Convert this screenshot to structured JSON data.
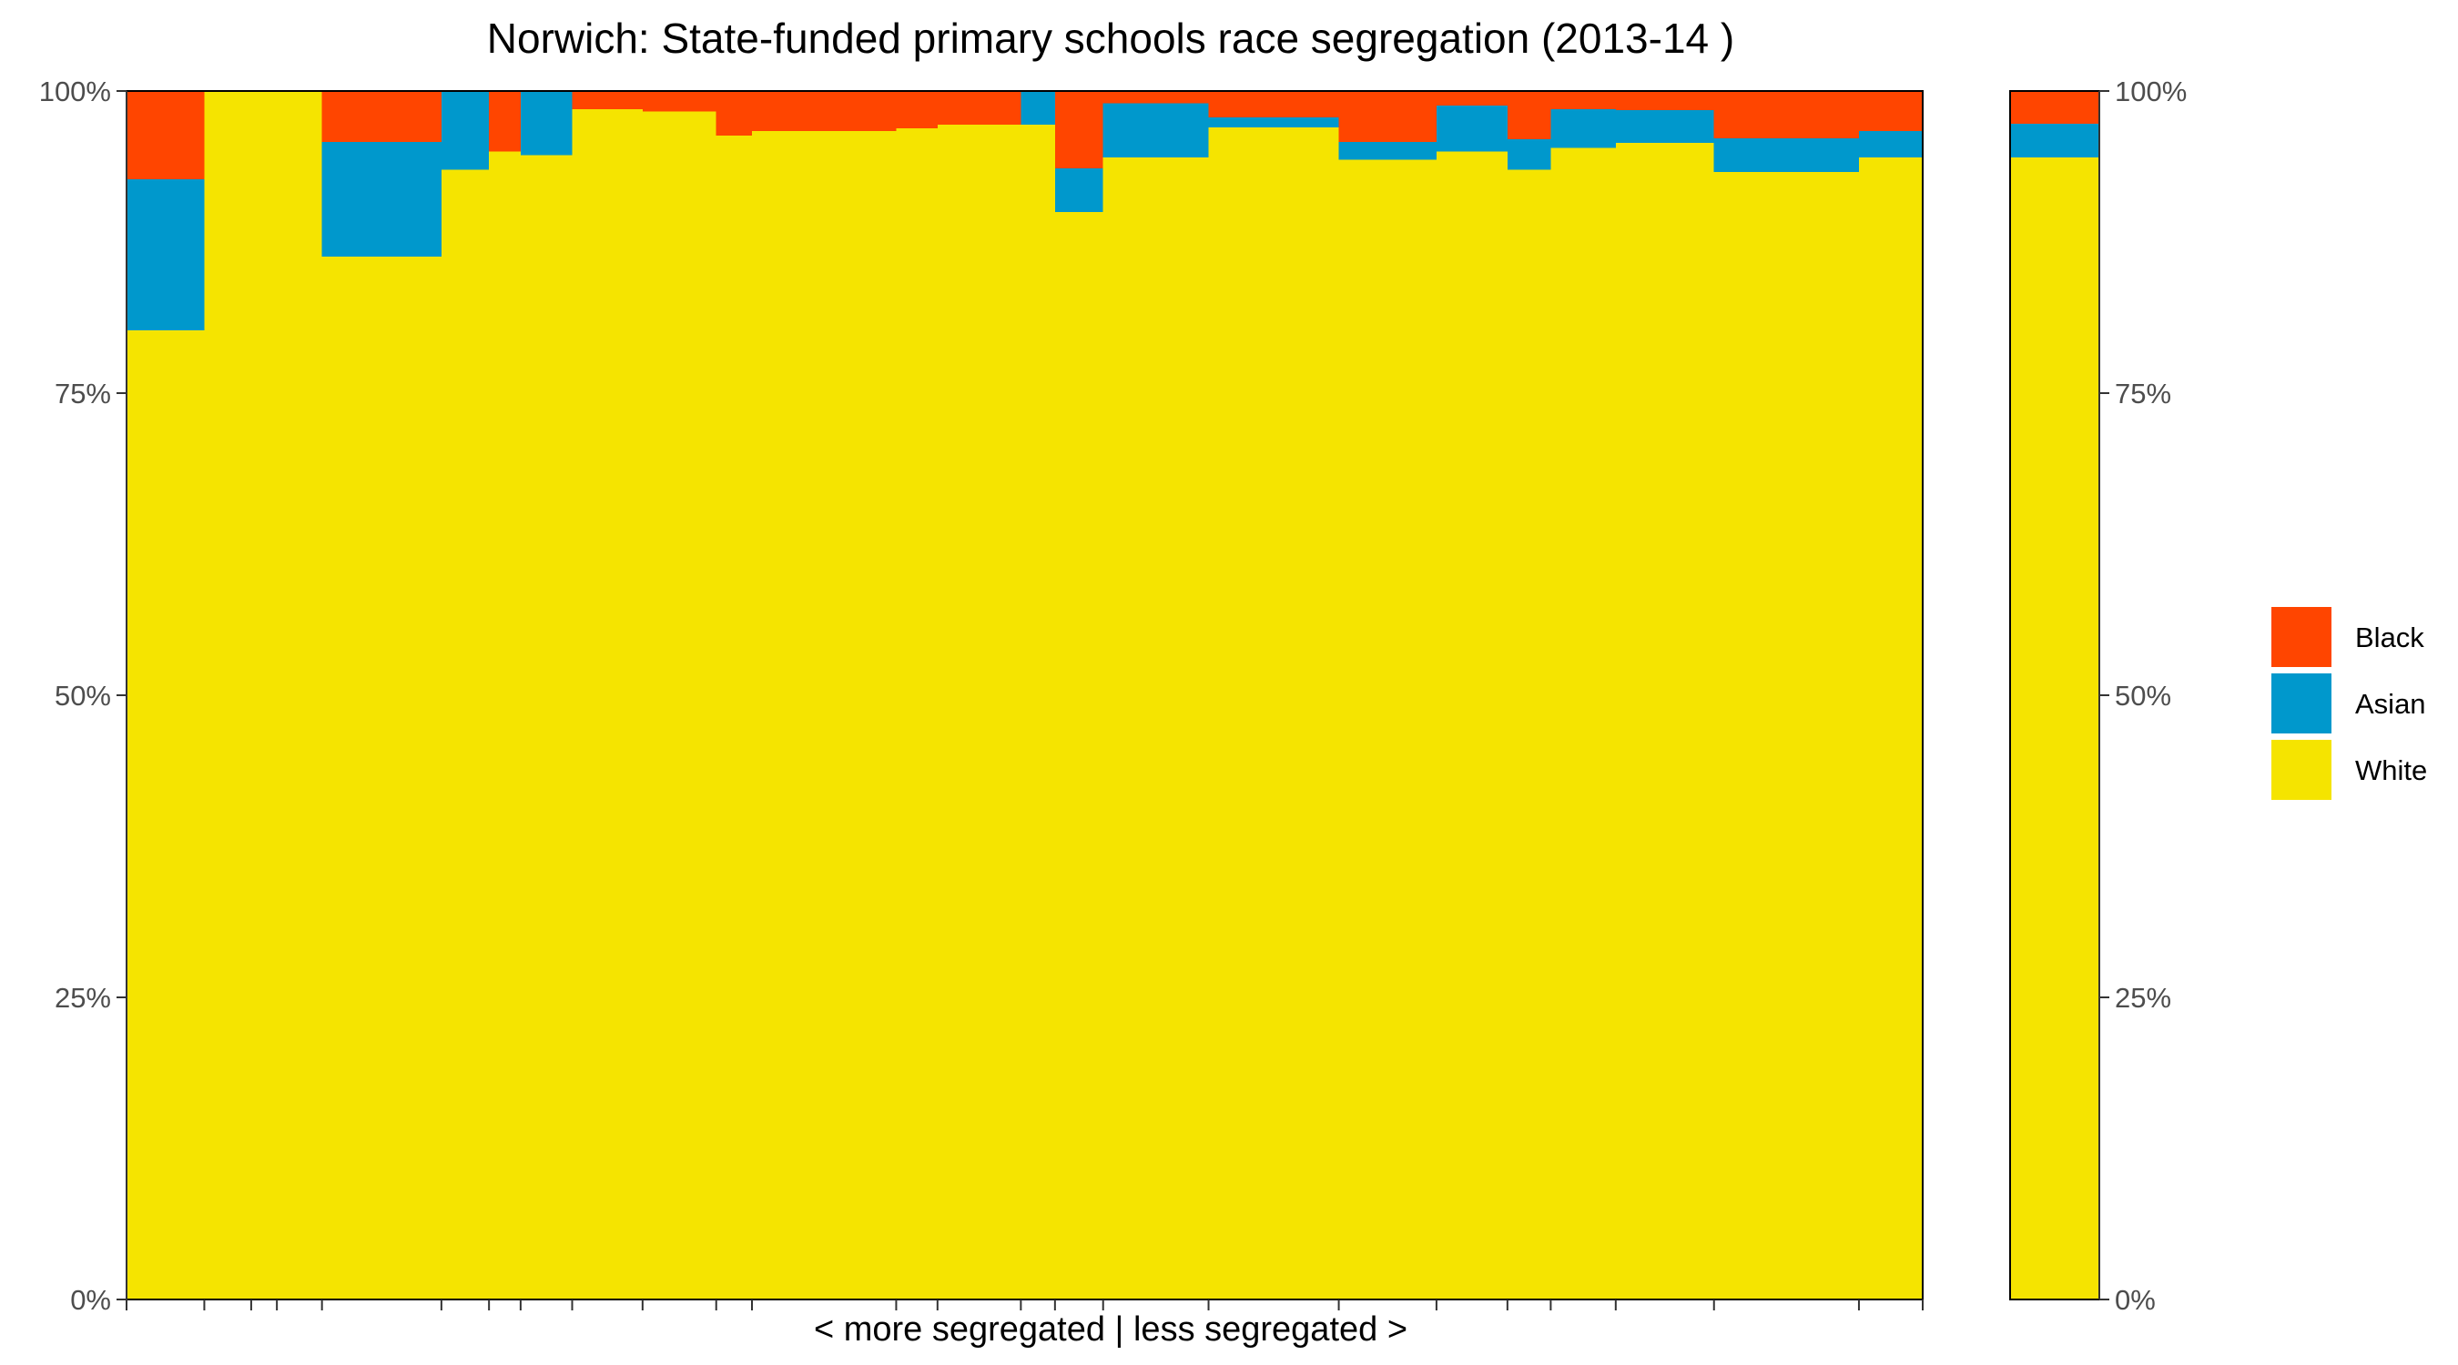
{
  "chart_data": {
    "type": "bar",
    "variant": "stacked-100-percent, variable-width (mosaic)",
    "title": "Norwich: State-funded primary schools race segregation (2013-14 )",
    "xlabel": "< more segregated | less segregated >",
    "ylabel": "",
    "ylim": [
      0,
      1
    ],
    "y_ticks": [
      "0%",
      "25%",
      "50%",
      "75%",
      "100%"
    ],
    "y_axis_sides": "left and right",
    "grid": false,
    "legend_position": "right",
    "stack_order_bottom_to_top": [
      "White",
      "Asian",
      "Black"
    ],
    "series_colors": {
      "Black": "#FF4500",
      "Asian": "#0098CC",
      "White": "#F5E400"
    },
    "legend": [
      {
        "name": "Black",
        "color": "#FF4500"
      },
      {
        "name": "Asian",
        "color": "#0098CC"
      },
      {
        "name": "White",
        "color": "#F5E400"
      }
    ],
    "schools": [
      {
        "x_start": 0.0,
        "x_end": 0.0433,
        "white": 0.802,
        "asian": 0.125,
        "black": 0.073
      },
      {
        "x_start": 0.0433,
        "x_end": 0.0694,
        "white": 1.0,
        "asian": 0.0,
        "black": 0.0
      },
      {
        "x_start": 0.0694,
        "x_end": 0.0837,
        "white": 1.0,
        "asian": 0.0,
        "black": 0.0
      },
      {
        "x_start": 0.0837,
        "x_end": 0.1088,
        "white": 1.0,
        "asian": 0.0,
        "black": 0.0
      },
      {
        "x_start": 0.1088,
        "x_end": 0.1753,
        "white": 0.863,
        "asian": 0.095,
        "black": 0.042
      },
      {
        "x_start": 0.1753,
        "x_end": 0.2018,
        "white": 0.935,
        "asian": 0.065,
        "black": 0.0
      },
      {
        "x_start": 0.2018,
        "x_end": 0.2194,
        "white": 0.95,
        "asian": 0.0,
        "black": 0.05
      },
      {
        "x_start": 0.2194,
        "x_end": 0.2481,
        "white": 0.947,
        "asian": 0.053,
        "black": 0.0
      },
      {
        "x_start": 0.2481,
        "x_end": 0.2873,
        "white": 0.985,
        "asian": 0.0,
        "black": 0.015
      },
      {
        "x_start": 0.2873,
        "x_end": 0.3283,
        "white": 0.983,
        "asian": 0.0,
        "black": 0.017
      },
      {
        "x_start": 0.3283,
        "x_end": 0.3482,
        "white": 0.963,
        "asian": 0.0,
        "black": 0.037
      },
      {
        "x_start": 0.3482,
        "x_end": 0.4285,
        "white": 0.967,
        "asian": 0.0,
        "black": 0.033
      },
      {
        "x_start": 0.4285,
        "x_end": 0.4515,
        "white": 0.969,
        "asian": 0.0,
        "black": 0.031
      },
      {
        "x_start": 0.4515,
        "x_end": 0.4979,
        "white": 0.972,
        "asian": 0.0,
        "black": 0.028
      },
      {
        "x_start": 0.4979,
        "x_end": 0.5169,
        "white": 0.972,
        "asian": 0.028,
        "black": 0.0
      },
      {
        "x_start": 0.5169,
        "x_end": 0.5437,
        "white": 0.9,
        "asian": 0.036,
        "black": 0.064
      },
      {
        "x_start": 0.5437,
        "x_end": 0.6024,
        "white": 0.945,
        "asian": 0.045,
        "black": 0.01
      },
      {
        "x_start": 0.6024,
        "x_end": 0.6749,
        "white": 0.97,
        "asian": 0.008,
        "black": 0.022
      },
      {
        "x_start": 0.6749,
        "x_end": 0.7293,
        "white": 0.943,
        "asian": 0.015,
        "black": 0.042
      },
      {
        "x_start": 0.7293,
        "x_end": 0.7688,
        "white": 0.95,
        "asian": 0.038,
        "black": 0.012
      },
      {
        "x_start": 0.7688,
        "x_end": 0.7929,
        "white": 0.935,
        "asian": 0.025,
        "black": 0.04
      },
      {
        "x_start": 0.7929,
        "x_end": 0.8291,
        "white": 0.953,
        "asian": 0.032,
        "black": 0.015
      },
      {
        "x_start": 0.8291,
        "x_end": 0.8838,
        "white": 0.957,
        "asian": 0.027,
        "black": 0.016
      },
      {
        "x_start": 0.8838,
        "x_end": 0.9645,
        "white": 0.933,
        "asian": 0.028,
        "black": 0.039
      },
      {
        "x_start": 0.9645,
        "x_end": 1.0,
        "white": 0.945,
        "asian": 0.022,
        "black": 0.033
      }
    ],
    "total_bar": {
      "white": 0.945,
      "asian": 0.028,
      "black": 0.027
    }
  }
}
